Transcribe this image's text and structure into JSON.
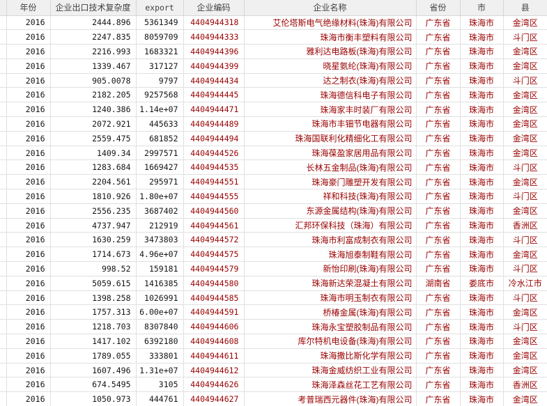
{
  "table": {
    "columns": [
      {
        "key": "year",
        "label": "年份",
        "type": "numeric"
      },
      {
        "key": "complexity",
        "label": "企业出口技术复杂度",
        "type": "numeric"
      },
      {
        "key": "export",
        "label": "export",
        "type": "numeric"
      },
      {
        "key": "code",
        "label": "企业编码",
        "type": "code"
      },
      {
        "key": "name",
        "label": "企业名称",
        "type": "string"
      },
      {
        "key": "province",
        "label": "省份",
        "type": "string-center"
      },
      {
        "key": "city",
        "label": "市",
        "type": "string-center"
      },
      {
        "key": "county",
        "label": "县",
        "type": "string-center"
      }
    ],
    "rows": [
      [
        "2016",
        "2444.896",
        "5361349",
        "4404944318",
        "艾伦塔斯电气绝缘材料(珠海)有限公司",
        "广东省",
        "珠海市",
        "金湾区"
      ],
      [
        "2016",
        "2247.835",
        "8059709",
        "4404944333",
        "珠海市衡丰塑料有限公司",
        "广东省",
        "珠海市",
        "斗门区"
      ],
      [
        "2016",
        "2216.993",
        "1683321",
        "4404944396",
        "雅利达电路板(珠海)有限公司",
        "广东省",
        "珠海市",
        "金湾区"
      ],
      [
        "2016",
        "1339.467",
        "317127",
        "4404944399",
        "晓星氨纶(珠海)有限公司",
        "广东省",
        "珠海市",
        "金湾区"
      ],
      [
        "2016",
        "905.0078",
        "9797",
        "4404944434",
        "达之制衣(珠海)有限公司",
        "广东省",
        "珠海市",
        "斗门区"
      ],
      [
        "2016",
        "2182.205",
        "9257568",
        "4404944445",
        "珠海德信科电子有限公司",
        "广东省",
        "珠海市",
        "金湾区"
      ],
      [
        "2016",
        "1240.386",
        "1.14e+07",
        "4404944471",
        "珠海家丰时装厂有限公司",
        "广东省",
        "珠海市",
        "金湾区"
      ],
      [
        "2016",
        "2072.921",
        "445633",
        "4404944489",
        "珠海市丰钿节电器有限公司",
        "广东省",
        "珠海市",
        "金湾区"
      ],
      [
        "2016",
        "2559.475",
        "681852",
        "4404944494",
        "珠海国联利化精细化工有限公司",
        "广东省",
        "珠海市",
        "金湾区"
      ],
      [
        "2016",
        "1409.34",
        "2997571",
        "4404944526",
        "珠海葆盈家居用品有限公司",
        "广东省",
        "珠海市",
        "金湾区"
      ],
      [
        "2016",
        "1283.684",
        "1669427",
        "4404944535",
        "长林五金制品(珠海)有限公司",
        "广东省",
        "珠海市",
        "斗门区"
      ],
      [
        "2016",
        "2204.561",
        "295971",
        "4404944551",
        "珠海豪门雕塑开发有限公司",
        "广东省",
        "珠海市",
        "金湾区"
      ],
      [
        "2016",
        "1810.926",
        "1.80e+07",
        "4404944555",
        "祥和科技(珠海)有限公司",
        "广东省",
        "珠海市",
        "斗门区"
      ],
      [
        "2016",
        "2556.235",
        "3687402",
        "4404944560",
        "东源金属结构(珠海)有限公司",
        "广东省",
        "珠海市",
        "金湾区"
      ],
      [
        "2016",
        "4737.947",
        "212919",
        "4404944561",
        "汇邦环保科技（珠海）有限公司",
        "广东省",
        "珠海市",
        "香洲区"
      ],
      [
        "2016",
        "1630.259",
        "3473803",
        "4404944572",
        "珠海市利富成制衣有限公司",
        "广东省",
        "珠海市",
        "斗门区"
      ],
      [
        "2016",
        "1714.673",
        "4.96e+07",
        "4404944575",
        "珠海旭泰制鞋有限公司",
        "广东省",
        "珠海市",
        "金湾区"
      ],
      [
        "2016",
        "998.52",
        "159181",
        "4404944579",
        "新怡印刷(珠海)有限公司",
        "广东省",
        "珠海市",
        "斗门区"
      ],
      [
        "2016",
        "5059.615",
        "1416385",
        "4404944580",
        "珠海新达荣混凝土有限公司",
        "湖南省",
        "娄底市",
        "冷水江市"
      ],
      [
        "2016",
        "1398.258",
        "1026991",
        "4404944585",
        "珠海市明玉制衣有限公司",
        "广东省",
        "珠海市",
        "斗门区"
      ],
      [
        "2016",
        "1757.313",
        "6.00e+07",
        "4404944591",
        "桥椿金属(珠海)有限公司",
        "广东省",
        "珠海市",
        "金湾区"
      ],
      [
        "2016",
        "1218.703",
        "8307840",
        "4404944606",
        "珠海永宝塑胶制品有限公司",
        "广东省",
        "珠海市",
        "斗门区"
      ],
      [
        "2016",
        "1417.102",
        "6392180",
        "4404944608",
        "库尔特机电设备(珠海)有限公司",
        "广东省",
        "珠海市",
        "金湾区"
      ],
      [
        "2016",
        "1789.055",
        "333801",
        "4404944611",
        "珠海撒比斯化学有限公司",
        "广东省",
        "珠海市",
        "金湾区"
      ],
      [
        "2016",
        "1607.496",
        "1.31e+07",
        "4404944612",
        "珠海金威纺织工业有限公司",
        "广东省",
        "珠海市",
        "金湾区"
      ],
      [
        "2016",
        "674.5495",
        "3105",
        "4404944626",
        "珠海泽森丝花工艺有限公司",
        "广东省",
        "珠海市",
        "香洲区"
      ],
      [
        "2016",
        "1050.973",
        "444761",
        "4404944627",
        "考普瑞西元器件(珠海)有限公司",
        "广东省",
        "珠海市",
        "金湾区"
      ]
    ]
  },
  "colors": {
    "header_bg": "#f0f0f0",
    "header_text": "#3f3f3f",
    "grid_line": "#e0e0e0",
    "numeric_text": "#141414",
    "string_text": "#9a0000"
  }
}
